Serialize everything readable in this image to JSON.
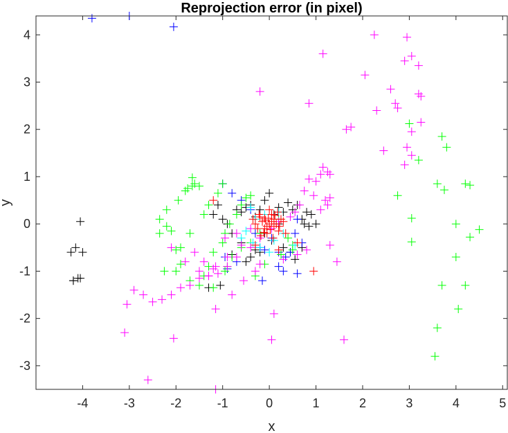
{
  "chart_data": {
    "type": "scatter",
    "title": "Reprojection error (in pixel)",
    "xlabel": "x",
    "ylabel": "y",
    "xlim": [
      -5,
      5.1
    ],
    "ylim": [
      -3.5,
      4.4
    ],
    "xticks": [
      -4,
      -3,
      -2,
      -1,
      0,
      1,
      2,
      3,
      4,
      5
    ],
    "yticks": [
      -3,
      -2,
      -1,
      0,
      1,
      2,
      3,
      4
    ],
    "marker": "+",
    "grid": false,
    "legend": "none",
    "colors": {
      "black": "#000000",
      "blue": "#0000ff",
      "green": "#00ff00",
      "magenta": "#ff00ff",
      "red": "#ff0000",
      "cyan": "#00ffff"
    },
    "series": [
      {
        "color": "black",
        "x": [
          -4.2,
          -4.15,
          -4.05,
          -4.0,
          -4.25,
          -4.2,
          -4.1,
          -4.05,
          -1.3,
          -1.2,
          -1.1,
          -1.0,
          -0.9,
          -0.8,
          -0.7,
          -0.6,
          -0.5,
          -0.4,
          -0.3,
          -0.2,
          -0.1,
          0.0,
          0.1,
          0.2,
          0.3,
          0.4,
          0.5,
          0.6,
          0.7,
          0.75,
          0.8,
          0.85,
          0.9,
          1.0,
          -0.8,
          -0.6,
          -0.4,
          -0.5,
          -0.3,
          -0.2,
          0.3,
          0.45,
          0.55,
          0.7,
          -1.05,
          -0.1,
          0.05,
          0.2
        ],
        "y": [
          -1.2,
          -0.5,
          0.05,
          -0.6,
          -0.6,
          -1.2,
          -1.15,
          -1.15,
          -1.35,
          0.2,
          0.4,
          0.1,
          0.0,
          -0.2,
          0.3,
          0.25,
          0.35,
          0.4,
          0.15,
          0.3,
          0.5,
          0.65,
          0.2,
          0.35,
          0.25,
          0.45,
          0.3,
          0.4,
          0.1,
          0.0,
          0.25,
          -0.05,
          0.2,
          0.0,
          -0.65,
          -0.4,
          -0.7,
          -0.8,
          -0.55,
          -0.6,
          -0.5,
          -0.6,
          -0.75,
          -0.5,
          -1.3,
          -0.2,
          -0.35,
          0.0
        ]
      },
      {
        "color": "blue",
        "x": [
          -3.8,
          -3.0,
          -2.05,
          -1.0,
          -0.8,
          -0.6,
          -0.4,
          -0.3,
          -0.2,
          0.05,
          0.2,
          0.3,
          0.45,
          0.55,
          0.6,
          0.7,
          -0.95,
          -0.15,
          0.2,
          -0.9,
          -0.7,
          -0.1,
          0.35,
          0.6
        ],
        "y": [
          4.35,
          4.4,
          4.17,
          0.85,
          0.65,
          0.5,
          0.3,
          -0.2,
          -0.5,
          -0.3,
          -0.6,
          -1.0,
          -0.6,
          -0.2,
          0.1,
          -0.4,
          -0.7,
          -1.2,
          -0.9,
          -0.95,
          -0.8,
          -0.55,
          -0.7,
          -1.05
        ]
      },
      {
        "color": "green",
        "x": [
          -1.65,
          -1.65,
          -1.75,
          -1.95,
          -2.2,
          -2.35,
          -2.35,
          -1.9,
          -2.0,
          -1.7,
          -1.4,
          -1.3,
          -1.2,
          -1.0,
          -0.95,
          -0.85,
          -0.7,
          -0.6,
          -0.5,
          -0.4,
          -1.5,
          -1.6,
          -1.8,
          -2.1,
          -2.0,
          -1.9,
          -1.5,
          -1.2,
          -0.95,
          -0.8,
          -0.6,
          -0.4,
          -0.2,
          0.2,
          0.4,
          0.5,
          3.7,
          3.8,
          3.6,
          4.2,
          4.3,
          4.5,
          4.0,
          4.3,
          4.2,
          4.0,
          4.05,
          3.7,
          3.75,
          3.6,
          3.55,
          2.75,
          3.05,
          3.05,
          3.2,
          3.0,
          -2.2,
          -2.25,
          -1.7,
          -1.4,
          -1.3,
          -0.9,
          -0.3,
          -0.1,
          0.25,
          0.5,
          -1.1,
          -1.0
        ],
        "y": [
          0.98,
          0.8,
          0.75,
          0.5,
          0.3,
          0.1,
          -0.2,
          -0.5,
          -1.0,
          -1.2,
          -1.1,
          -0.9,
          -0.6,
          -0.4,
          -0.2,
          0.0,
          0.2,
          0.4,
          0.55,
          0.6,
          0.8,
          0.85,
          0.7,
          -0.15,
          -0.55,
          -0.85,
          -1.3,
          -1.35,
          -1.0,
          -0.7,
          -0.5,
          -0.4,
          -0.2,
          0.1,
          -0.3,
          -0.45,
          1.85,
          1.62,
          0.85,
          0.85,
          0.82,
          -0.12,
          0.0,
          -0.28,
          -1.3,
          -0.7,
          -1.8,
          -1.3,
          0.72,
          -2.2,
          -2.8,
          0.6,
          0.12,
          -0.38,
          1.35,
          2.12,
          -0.05,
          -1.0,
          -0.2,
          0.2,
          0.4,
          -0.9,
          -1.1,
          -0.85,
          -0.65,
          -0.55,
          0.65,
          0.85
        ]
      },
      {
        "color": "cyan",
        "x": [
          -0.6,
          -0.5,
          -0.35,
          -0.3,
          -0.2,
          -0.1,
          0.1,
          0.2,
          0.3,
          0.45,
          0.55,
          -0.4,
          0.0
        ],
        "y": [
          -0.3,
          -0.15,
          -0.4,
          0.1,
          -0.5,
          0.2,
          -0.35,
          0.25,
          -0.2,
          0.15,
          -0.45,
          0.35,
          -0.6
        ]
      },
      {
        "color": "magenta",
        "x": [
          2.25,
          2.95,
          3.05,
          2.9,
          3.2,
          2.05,
          1.15,
          3.2,
          3.25,
          2.6,
          2.7,
          2.3,
          2.75,
          0.85,
          -0.2,
          1.65,
          1.75,
          3.05,
          2.95,
          3.25,
          2.45,
          3.05,
          2.9,
          1.0,
          1.1,
          1.15,
          1.25,
          1.3,
          0.85,
          0.75,
          0.95,
          1.2,
          1.3,
          1.25,
          1.1,
          0.55,
          0.65,
          0.45,
          0.2,
          0.05,
          -0.2,
          -0.4,
          -0.7,
          -0.9,
          -1.1,
          -1.3,
          -1.5,
          -1.7,
          -1.9,
          -2.1,
          -2.3,
          -2.5,
          -2.7,
          -2.9,
          -3.05,
          -3.1,
          -1.15,
          -2.6,
          -1.15,
          -0.8,
          -0.55,
          -0.3,
          0.1,
          0.05,
          1.6,
          -2.05,
          -2.1,
          -1.6,
          -1.4,
          -1.2,
          -0.9,
          -0.6,
          -0.2,
          0.3,
          0.6,
          0.8,
          -1.8,
          -1.5,
          -1.3,
          -1.15,
          -0.95,
          -0.7,
          -0.4,
          1.3,
          1.45
        ],
        "y": [
          4.0,
          3.95,
          3.55,
          3.45,
          3.35,
          3.15,
          3.6,
          2.75,
          2.7,
          2.85,
          2.55,
          2.4,
          2.45,
          2.55,
          2.8,
          2.0,
          2.05,
          1.95,
          1.62,
          2.15,
          1.55,
          1.45,
          1.25,
          0.9,
          1.05,
          1.2,
          1.1,
          1.05,
          0.95,
          0.7,
          0.6,
          0.5,
          0.55,
          0.4,
          0.3,
          0.25,
          0.4,
          0.15,
          0.05,
          -0.1,
          -0.3,
          -0.5,
          -0.7,
          -0.9,
          -1.05,
          -1.1,
          -1.15,
          -1.3,
          -1.35,
          -1.5,
          -1.6,
          -1.65,
          -1.5,
          -1.4,
          -1.7,
          -2.3,
          -1.8,
          -3.3,
          -3.5,
          -1.5,
          -1.2,
          -1.0,
          -1.9,
          -2.45,
          -2.45,
          -2.42,
          -0.5,
          -0.6,
          -0.8,
          -0.95,
          -0.7,
          -0.45,
          -0.85,
          -0.75,
          -0.65,
          -0.55,
          -0.8,
          -1.0,
          -1.1,
          -0.9,
          -0.3,
          -0.2,
          -0.1,
          -0.45,
          -0.8
        ]
      },
      {
        "color": "red",
        "x": [
          0.0,
          0.05,
          -0.05,
          0.1,
          -0.1,
          0.15,
          -0.15,
          0.2,
          -0.2,
          0.25,
          -0.25,
          0.3,
          -0.3,
          0.05,
          -0.05,
          0.1,
          -0.1,
          0.0,
          0.18,
          -0.18,
          0.22,
          -0.22,
          0.08,
          -0.08,
          0.12,
          -0.12,
          0.35,
          -0.35,
          0.02,
          -0.02,
          0.6,
          0.95,
          -1.2,
          0.2,
          -0.3
        ],
        "y": [
          0.0,
          0.05,
          -0.05,
          0.1,
          -0.1,
          0.0,
          0.05,
          -0.15,
          0.15,
          0.1,
          -0.1,
          0.05,
          0.0,
          0.2,
          -0.2,
          -0.05,
          0.12,
          0.3,
          0.25,
          -0.25,
          -0.05,
          0.2,
          -0.3,
          0.08,
          0.18,
          -0.18,
          -0.2,
          0.1,
          -0.12,
          0.12,
          -0.4,
          -1.0,
          0.5,
          -0.55,
          -0.45
        ]
      }
    ]
  }
}
